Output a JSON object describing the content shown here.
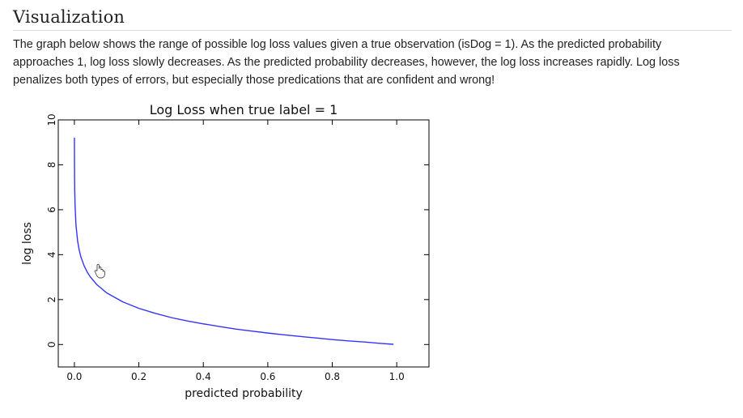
{
  "section": {
    "heading": "Visualization",
    "paragraph": "The graph below shows the range of possible log loss values given a true observation (isDog = 1). As the predicted probability approaches 1, log loss slowly decreases. As the predicted probability decreases, however, the log loss increases rapidly. Log loss penalizes both types of errors, but especially those predications that are confident and wrong!"
  },
  "chart_data": {
    "type": "line",
    "title": "Log Loss when true label = 1",
    "xlabel": "predicted probability",
    "ylabel": "log loss",
    "xlim": [
      -0.05,
      1.1
    ],
    "ylim": [
      -1,
      10
    ],
    "x_ticks": [
      0.0,
      0.2,
      0.4,
      0.6,
      0.8,
      1.0
    ],
    "x_tick_labels": [
      "0.0",
      "0.2",
      "0.4",
      "0.6",
      "0.8",
      "1.0"
    ],
    "y_ticks": [
      0,
      2,
      4,
      6,
      8,
      10
    ],
    "y_tick_labels": [
      "0",
      "2",
      "4",
      "6",
      "8",
      "10"
    ],
    "y_tick_label_rotation": -90,
    "grid": false,
    "series": [
      {
        "color": "#3333ff",
        "x": [
          0.0001,
          0.0002,
          0.0005,
          0.001,
          0.002,
          0.005,
          0.01,
          0.015,
          0.02,
          0.03,
          0.04,
          0.05,
          0.07,
          0.1,
          0.15,
          0.2,
          0.25,
          0.3,
          0.35,
          0.4,
          0.45,
          0.5,
          0.55,
          0.6,
          0.65,
          0.7,
          0.75,
          0.8,
          0.85,
          0.9,
          0.95,
          0.99
        ],
        "y": [
          9.21,
          8.52,
          7.6,
          6.91,
          6.21,
          5.3,
          4.61,
          4.2,
          3.91,
          3.51,
          3.22,
          3.0,
          2.66,
          2.3,
          1.9,
          1.61,
          1.39,
          1.2,
          1.05,
          0.92,
          0.8,
          0.69,
          0.6,
          0.51,
          0.43,
          0.36,
          0.29,
          0.22,
          0.16,
          0.11,
          0.05,
          0.01
        ]
      }
    ]
  }
}
